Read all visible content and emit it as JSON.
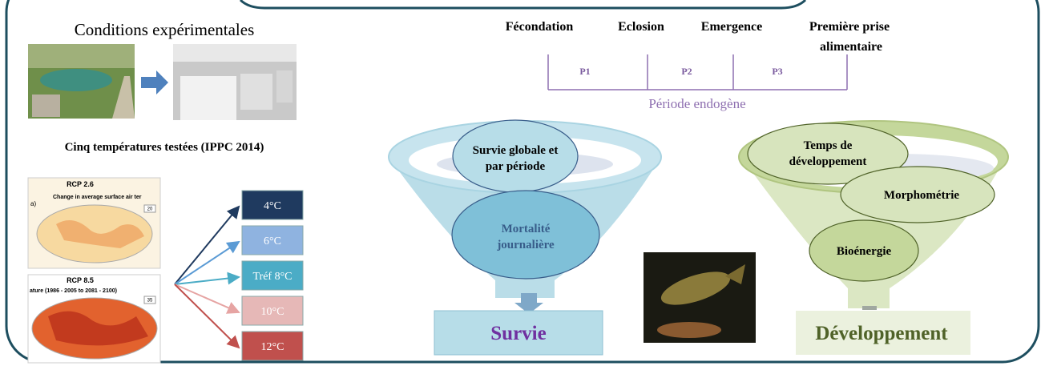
{
  "left_panel": {
    "title": "Conditions expérimentales",
    "temperatures_title": "Cinq températures testées (IPPC 2014)",
    "map_top": {
      "title": "RCP 2.6",
      "panel": "a)",
      "subtitle": "Change in average surface air ter",
      "badge": "20"
    },
    "map_bottom": {
      "title": "RCP 8.5",
      "subtitle": "ature (1986 - 2005 to 2081 - 2100)",
      "badge": "35"
    },
    "temperatures": [
      "4°C",
      "6°C",
      "Tréf 8°C",
      "10°C",
      "12°C"
    ]
  },
  "timeline": {
    "stages": [
      "Fécondation",
      "Eclosion",
      "Emergence",
      [
        "Première  prise",
        "alimentaire"
      ]
    ],
    "periods": [
      "P1",
      "P2",
      "P3"
    ],
    "caption": "Période endogène"
  },
  "survival_funnel": {
    "top": [
      "Survie globale et",
      "par période"
    ],
    "middle": [
      "Mortalité",
      "journalière"
    ],
    "output": "Survie"
  },
  "development_funnel": {
    "items": [
      [
        "Temps de",
        "développement"
      ],
      "Morphométrie",
      "Bioénergie"
    ],
    "output": "Développement"
  }
}
